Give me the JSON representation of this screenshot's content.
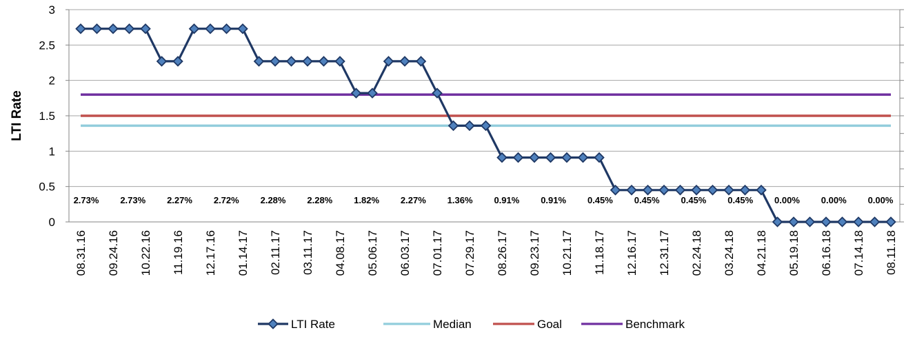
{
  "chart_data": {
    "type": "line",
    "ylabel": "LTI Rate",
    "ylim": [
      0,
      3
    ],
    "y_ticks": [
      "0",
      "0.5",
      "1",
      "1.5",
      "2",
      "2.5",
      "3"
    ],
    "grid": "horizontal",
    "legend_position": "bottom",
    "categories": [
      "08.31.16",
      "",
      "09.24.16",
      "",
      "10.22.16",
      "",
      "11.19.16",
      "",
      "12.17.16",
      "",
      "01.14.17",
      "",
      "02.11.17",
      "",
      "03.11.17",
      "",
      "04.08.17",
      "",
      "05.06.17",
      "",
      "06.03.17",
      "",
      "07.01.17",
      "",
      "07.29.17",
      "",
      "08.26.17",
      "",
      "09.23.17",
      "",
      "10.21.17",
      "",
      "11.18.17",
      "",
      "12.16.17",
      "",
      "12.31.17",
      "",
      "02.24.18",
      "",
      "03.24.18",
      "",
      "04.21.18",
      "",
      "05.19.18",
      "",
      "06.16.18",
      "",
      "07.14.18",
      "",
      "08.11.18"
    ],
    "x_tick_labels": [
      "08.31.16",
      "09.24.16",
      "10.22.16",
      "11.19.16",
      "12.17.16",
      "01.14.17",
      "02.11.17",
      "03.11.17",
      "04.08.17",
      "05.06.17",
      "06.03.17",
      "07.01.17",
      "07.29.17",
      "08.26.17",
      "09.23.17",
      "10.21.17",
      "11.18.17",
      "12.16.17",
      "12.31.17",
      "02.24.18",
      "03.24.18",
      "04.21.18",
      "05.19.18",
      "06.16.18",
      "07.14.18",
      "08.11.18"
    ],
    "series": [
      {
        "name": "LTI Rate",
        "color": "#1f3864",
        "marker": "diamond",
        "values": [
          2.73,
          2.73,
          2.73,
          2.73,
          2.73,
          2.27,
          2.27,
          2.73,
          2.73,
          2.73,
          2.73,
          2.27,
          2.27,
          2.27,
          2.27,
          2.27,
          2.27,
          1.82,
          1.82,
          2.27,
          2.27,
          2.27,
          1.82,
          1.36,
          1.36,
          1.36,
          0.91,
          0.91,
          0.91,
          0.91,
          0.91,
          0.91,
          0.91,
          0.45,
          0.45,
          0.45,
          0.45,
          0.45,
          0.45,
          0.45,
          0.45,
          0.45,
          0.45,
          0.0,
          0.0,
          0.0,
          0.0,
          0.0,
          0.0,
          0.0,
          0.0
        ]
      },
      {
        "name": "Median",
        "color": "#92cddc",
        "value": 1.36
      },
      {
        "name": "Goal",
        "color": "#c0504d",
        "value": 1.5
      },
      {
        "name": "Benchmark",
        "color": "#7030a0",
        "value": 1.8
      }
    ],
    "data_labels": [
      "2.73%",
      "2.73%",
      "2.27%",
      "2.72%",
      "2.28%",
      "2.28%",
      "1.82%",
      "2.27%",
      "1.36%",
      "0.91%",
      "0.91%",
      "0.45%",
      "0.45%",
      "0.45%",
      "0.45%",
      "0.00%",
      "0.00%",
      "0.00%"
    ]
  }
}
